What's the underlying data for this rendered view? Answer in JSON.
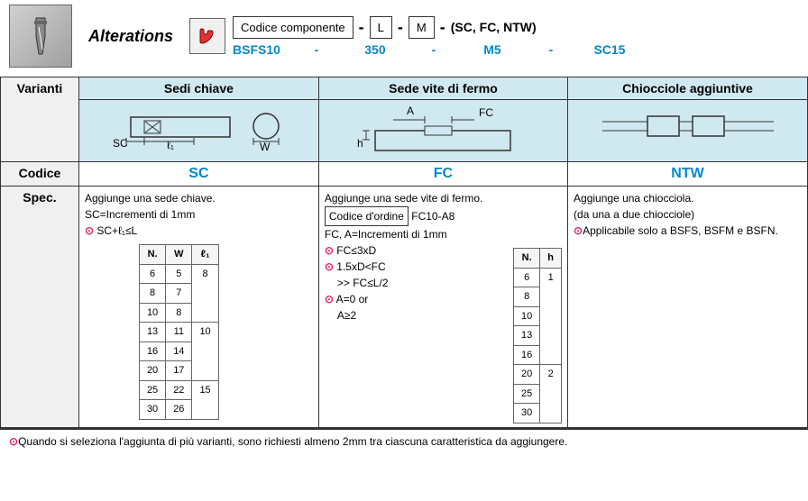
{
  "header": {
    "alterations_label": "Alterations",
    "code_label": "Codice componente",
    "param_L": "L",
    "param_M": "M",
    "paren_text": "(SC, FC, NTW)",
    "example_code": "BSFS10",
    "example_L": "350",
    "example_M": "M5",
    "example_opt": "SC15"
  },
  "columns": {
    "varianti_label": "Varianti",
    "codice_label": "Codice",
    "spec_label": "Spec.",
    "col1_title": "Sedi chiave",
    "col2_title": "Sede vite di fermo",
    "col3_title": "Chiocciole aggiuntive",
    "col1_code": "SC",
    "col2_code": "FC",
    "col3_code": "NTW"
  },
  "spec_sc": {
    "line1": "Aggiunge una sede chiave.",
    "line2": "SC=Incrementi di 1mm",
    "line3": "SC+ℓ₁≤L",
    "table_hdr_N": "N.",
    "table_hdr_W": "W",
    "table_hdr_l1": "ℓ₁",
    "rows": [
      {
        "n": "6",
        "w": "5",
        "l": ""
      },
      {
        "n": "8",
        "w": "7",
        "l": "8"
      },
      {
        "n": "10",
        "w": "8",
        "l": ""
      },
      {
        "n": "13",
        "w": "11",
        "l": ""
      },
      {
        "n": "16",
        "w": "14",
        "l": "10"
      },
      {
        "n": "20",
        "w": "17",
        "l": ""
      },
      {
        "n": "25",
        "w": "22",
        "l": ""
      },
      {
        "n": "30",
        "w": "26",
        "l": "15"
      }
    ]
  },
  "spec_fc": {
    "line1": "Aggiunge una sede vite di fermo.",
    "order_label": "Codice d'ordine",
    "order_val": "FC10-A8",
    "line3": "FC, A=Incrementi di 1mm",
    "cond1": "FC≤3xD",
    "cond2a": "1.5xD<FC",
    "cond2b": ">>    FC≤L/2",
    "cond3": "A=0 or",
    "cond3b": "A≥2",
    "table_hdr_N": "N.",
    "table_hdr_h": "h",
    "rows": [
      {
        "n": "6",
        "h": ""
      },
      {
        "n": "8",
        "h": ""
      },
      {
        "n": "10",
        "h": "1"
      },
      {
        "n": "13",
        "h": ""
      },
      {
        "n": "16",
        "h": ""
      },
      {
        "n": "20",
        "h": ""
      },
      {
        "n": "25",
        "h": "2"
      },
      {
        "n": "30",
        "h": ""
      }
    ]
  },
  "spec_ntw": {
    "line1": "Aggiunge una chiocciola.",
    "line2": "(da una a due chiocciole)",
    "line3": "Applicabile solo a BSFS, BSFM e BSFN."
  },
  "footer": "Quando si seleziona l'aggiunta di più varianti, sono richiesti almeno 2mm tra ciascuna caratteristica da aggiungere.",
  "colors": {
    "header_bg": "#d0e8f0",
    "link_blue": "#0088cc",
    "note_pink": "#e91e63"
  }
}
